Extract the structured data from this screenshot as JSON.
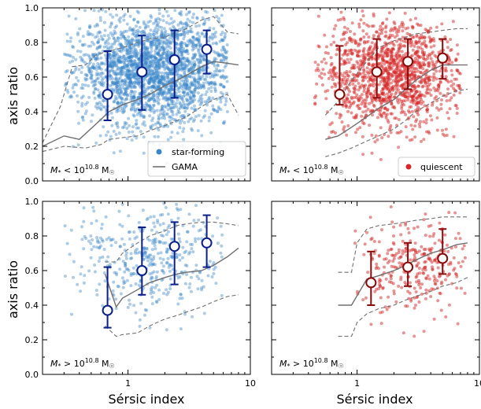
{
  "figure": {
    "xlabel": "Sérsic index",
    "ylabel": "axis ratio"
  },
  "legend": {
    "star_forming": "star-forming",
    "gama": "GAMA",
    "quiescent": "quiescent"
  },
  "colors": {
    "star_forming_points": "#3a86c8",
    "quiescent_points": "#d62728",
    "sf_binned": "#0b1f8a",
    "q_binned": "#8b0a0a",
    "gama_median": "#707070",
    "gama_bounds": "#707070"
  },
  "chart_data": [
    {
      "type": "scatter",
      "panel": "top-left",
      "annotation": "M* < 10^10.8 M☉",
      "x_scale": "log",
      "xlim": [
        0.2,
        10
      ],
      "ylim": [
        0.0,
        1.0
      ],
      "x_ticks": [
        "1",
        "10"
      ],
      "y_ticks": [
        "0.0",
        "0.2",
        "0.4",
        "0.6",
        "0.8",
        "1.0"
      ],
      "show_x_tick_labels": false,
      "show_y_tick_labels": true,
      "legend": true,
      "legend_position": "lower-right",
      "series": [
        {
          "name": "star-forming",
          "kind": "points",
          "color": "star_forming_points"
        },
        {
          "name": "GAMA",
          "kind": "line"
        }
      ],
      "binned": [
        {
          "x": 0.68,
          "y": 0.5,
          "ylow": 0.35,
          "yhigh": 0.75
        },
        {
          "x": 1.3,
          "y": 0.63,
          "ylow": 0.41,
          "yhigh": 0.84
        },
        {
          "x": 2.4,
          "y": 0.7,
          "ylow": 0.48,
          "yhigh": 0.87
        },
        {
          "x": 4.4,
          "y": 0.76,
          "ylow": 0.62,
          "yhigh": 0.87
        }
      ],
      "gama_median": {
        "x": [
          0.2,
          0.3,
          0.4,
          0.55,
          0.7,
          0.9,
          1.2,
          1.5,
          2.0,
          2.5,
          3.0,
          4.0,
          5.0,
          6.5,
          8.0
        ],
        "y": [
          0.2,
          0.26,
          0.24,
          0.33,
          0.4,
          0.44,
          0.47,
          0.5,
          0.55,
          0.58,
          0.61,
          0.66,
          0.69,
          0.68,
          0.67
        ]
      },
      "gama_upper": {
        "x": [
          0.2,
          0.28,
          0.35,
          0.45,
          0.55,
          0.7,
          0.9,
          1.2,
          1.5,
          2.0,
          2.5,
          3.0,
          4.0,
          5.0,
          6.5,
          8.0
        ],
        "y": [
          0.22,
          0.43,
          0.66,
          0.67,
          0.73,
          0.75,
          0.77,
          0.8,
          0.82,
          0.83,
          0.86,
          0.88,
          0.93,
          0.95,
          0.86,
          0.85
        ]
      },
      "gama_lower": {
        "x": [
          0.2,
          0.3,
          0.45,
          0.6,
          0.7,
          0.9,
          1.2,
          1.5,
          2.0,
          3.0,
          4.0,
          5.0,
          6.5,
          8.0
        ],
        "y": [
          0.17,
          0.2,
          0.19,
          0.21,
          0.24,
          0.25,
          0.26,
          0.29,
          0.32,
          0.37,
          0.43,
          0.47,
          0.5,
          0.38
        ]
      },
      "cloud": {
        "n": 2600,
        "xmed": 1.7,
        "xsig": 0.34,
        "xmin": 0.3,
        "xmax": 6.5,
        "ymed": 0.64,
        "ysig": 0.16
      }
    },
    {
      "type": "scatter",
      "panel": "top-right",
      "annotation": "M* < 10^10.8 M☉",
      "x_scale": "log",
      "xlim": [
        0.2,
        10
      ],
      "ylim": [
        0.0,
        1.0
      ],
      "x_ticks": [
        "1",
        "10"
      ],
      "y_ticks": [
        "0.0",
        "0.2",
        "0.4",
        "0.6",
        "0.8",
        "1.0"
      ],
      "show_x_tick_labels": false,
      "show_y_tick_labels": false,
      "legend": true,
      "legend_position": "lower-right",
      "series": [
        {
          "name": "quiescent",
          "kind": "points",
          "color": "quiescent_points"
        }
      ],
      "binned": [
        {
          "x": 0.72,
          "y": 0.5,
          "ylow": 0.44,
          "yhigh": 0.78
        },
        {
          "x": 1.45,
          "y": 0.63,
          "ylow": 0.48,
          "yhigh": 0.82
        },
        {
          "x": 2.6,
          "y": 0.69,
          "ylow": 0.53,
          "yhigh": 0.82
        },
        {
          "x": 5.0,
          "y": 0.71,
          "ylow": 0.59,
          "yhigh": 0.82
        }
      ],
      "gama_median": {
        "x": [
          0.55,
          0.7,
          0.9,
          1.2,
          1.5,
          2.0,
          2.5,
          3.0,
          4.0,
          5.0,
          6.5,
          8.0
        ],
        "y": [
          0.24,
          0.26,
          0.31,
          0.37,
          0.42,
          0.47,
          0.53,
          0.58,
          0.64,
          0.67,
          0.67,
          0.67
        ]
      },
      "gama_upper": {
        "x": [
          0.55,
          0.7,
          0.9,
          1.2,
          1.5,
          2.0,
          2.5,
          3.0,
          4.0,
          5.0,
          6.5,
          8.0
        ],
        "y": [
          0.38,
          0.46,
          0.58,
          0.69,
          0.77,
          0.81,
          0.83,
          0.85,
          0.86,
          0.87,
          0.88,
          0.88
        ]
      },
      "gama_lower": {
        "x": [
          0.55,
          0.7,
          0.9,
          1.2,
          1.5,
          2.0,
          2.5,
          3.0,
          4.0,
          5.0,
          6.5,
          8.0
        ],
        "y": [
          0.14,
          0.16,
          0.19,
          0.23,
          0.26,
          0.3,
          0.35,
          0.4,
          0.45,
          0.49,
          0.52,
          0.53
        ]
      },
      "cloud": {
        "n": 1500,
        "xmed": 1.9,
        "xsig": 0.32,
        "xmin": 0.45,
        "xmax": 7.0,
        "ymed": 0.62,
        "ysig": 0.16
      }
    },
    {
      "type": "scatter",
      "panel": "bottom-left",
      "annotation": "M* > 10^10.8 M☉",
      "x_scale": "log",
      "xlim": [
        0.2,
        10
      ],
      "ylim": [
        0.0,
        1.0
      ],
      "x_ticks": [
        "1",
        "10"
      ],
      "y_ticks": [
        "0.0",
        "0.2",
        "0.4",
        "0.6",
        "0.8",
        "1.0"
      ],
      "show_x_tick_labels": true,
      "show_y_tick_labels": true,
      "legend": false,
      "series": [],
      "binned": [
        {
          "x": 0.68,
          "y": 0.37,
          "ylow": 0.27,
          "yhigh": 0.62
        },
        {
          "x": 1.3,
          "y": 0.6,
          "ylow": 0.46,
          "yhigh": 0.85
        },
        {
          "x": 2.4,
          "y": 0.74,
          "ylow": 0.52,
          "yhigh": 0.88
        },
        {
          "x": 4.4,
          "y": 0.76,
          "ylow": 0.62,
          "yhigh": 0.92
        }
      ],
      "gama_median": {
        "x": [
          0.65,
          0.8,
          0.9,
          1.2,
          1.5,
          2.0,
          2.5,
          3.0,
          4.0,
          5.0,
          6.5,
          8.0
        ],
        "y": [
          0.58,
          0.39,
          0.44,
          0.49,
          0.53,
          0.56,
          0.58,
          0.59,
          0.6,
          0.63,
          0.68,
          0.73
        ]
      },
      "gama_upper": {
        "x": [
          0.65,
          0.8,
          0.9,
          1.2,
          1.5,
          2.0,
          2.5,
          3.0,
          4.0,
          5.0,
          6.5,
          8.0
        ],
        "y": [
          0.65,
          0.65,
          0.7,
          0.76,
          0.8,
          0.83,
          0.86,
          0.87,
          0.88,
          0.88,
          0.87,
          0.86
        ]
      },
      "gama_lower": {
        "x": [
          0.65,
          0.8,
          0.9,
          1.2,
          1.5,
          2.0,
          2.5,
          3.0,
          4.0,
          5.0,
          6.5,
          8.0
        ],
        "y": [
          0.28,
          0.22,
          0.23,
          0.24,
          0.28,
          0.32,
          0.34,
          0.36,
          0.39,
          0.42,
          0.45,
          0.46
        ]
      },
      "cloud": {
        "n": 460,
        "xmed": 1.5,
        "xsig": 0.33,
        "xmin": 0.3,
        "xmax": 6.0,
        "ymed": 0.66,
        "ysig": 0.17
      }
    },
    {
      "type": "scatter",
      "panel": "bottom-right",
      "annotation": "M* > 10^10.8 M☉",
      "x_scale": "log",
      "xlim": [
        0.2,
        10
      ],
      "ylim": [
        0.0,
        1.0
      ],
      "x_ticks": [
        "1",
        "10"
      ],
      "y_ticks": [
        "0.0",
        "0.2",
        "0.4",
        "0.6",
        "0.8",
        "1.0"
      ],
      "show_x_tick_labels": true,
      "show_y_tick_labels": false,
      "legend": false,
      "series": [],
      "binned": [
        {
          "x": 1.3,
          "y": 0.53,
          "ylow": 0.4,
          "yhigh": 0.71
        },
        {
          "x": 2.6,
          "y": 0.62,
          "ylow": 0.51,
          "yhigh": 0.76
        },
        {
          "x": 5.0,
          "y": 0.67,
          "ylow": 0.58,
          "yhigh": 0.84
        }
      ],
      "gama_median": {
        "x": [
          0.7,
          0.9,
          1.2,
          1.5,
          2.0,
          2.5,
          3.0,
          4.0,
          5.0,
          6.5,
          8.0
        ],
        "y": [
          0.4,
          0.4,
          0.55,
          0.57,
          0.6,
          0.63,
          0.66,
          0.7,
          0.72,
          0.75,
          0.76
        ]
      },
      "gama_upper": {
        "x": [
          0.7,
          0.9,
          1.0,
          1.2,
          1.5,
          2.0,
          2.5,
          3.0,
          4.0,
          5.0,
          6.5,
          8.0
        ],
        "y": [
          0.59,
          0.59,
          0.76,
          0.84,
          0.86,
          0.87,
          0.88,
          0.89,
          0.9,
          0.91,
          0.91,
          0.91
        ]
      },
      "gama_lower": {
        "x": [
          0.7,
          0.9,
          1.0,
          1.2,
          1.5,
          2.0,
          2.5,
          3.0,
          4.0,
          5.0,
          6.5,
          8.0
        ],
        "y": [
          0.22,
          0.22,
          0.3,
          0.35,
          0.38,
          0.4,
          0.43,
          0.45,
          0.48,
          0.51,
          0.53,
          0.56
        ]
      },
      "cloud": {
        "n": 330,
        "xmed": 3.0,
        "xsig": 0.24,
        "xmin": 0.9,
        "xmax": 8.0,
        "ymed": 0.63,
        "ysig": 0.15
      }
    }
  ]
}
